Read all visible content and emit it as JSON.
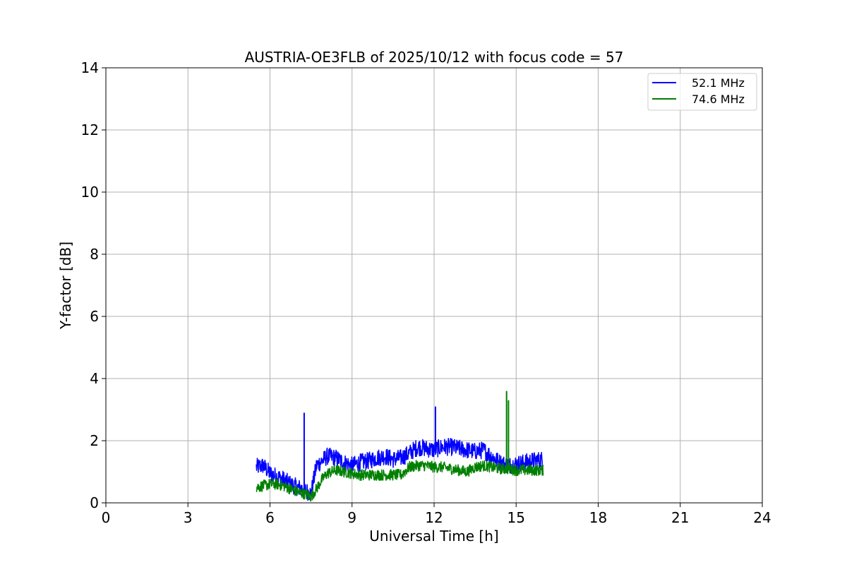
{
  "chart_data": {
    "type": "line",
    "title": "AUSTRIA-OE3FLB of 2025/10/12 with focus code = 57",
    "xlabel": "Universal Time [h]",
    "ylabel": "Y-factor [dB]",
    "xlim": [
      0,
      24
    ],
    "ylim": [
      0,
      14
    ],
    "xticks": [
      0,
      3,
      6,
      9,
      12,
      15,
      18,
      21,
      24
    ],
    "yticks": [
      0,
      2,
      4,
      6,
      8,
      10,
      12,
      14
    ],
    "grid": true,
    "legend_position": "top-right",
    "series": [
      {
        "name": "52.1 MHz",
        "color": "#0000ff",
        "x": [
          5.5,
          5.75,
          6.0,
          6.25,
          6.5,
          6.75,
          7.0,
          7.2,
          7.3,
          7.5,
          7.7,
          7.9,
          8.1,
          8.4,
          8.7,
          9.0,
          9.3,
          9.6,
          9.9,
          10.2,
          10.5,
          10.8,
          11.1,
          11.4,
          11.7,
          12.0,
          12.3,
          12.6,
          12.9,
          13.2,
          13.5,
          13.8,
          14.1,
          14.4,
          14.7,
          15.0,
          15.3,
          15.6,
          16.0
        ],
        "y": [
          1.15,
          1.2,
          0.95,
          0.85,
          0.75,
          0.6,
          0.5,
          0.45,
          0.4,
          0.3,
          1.2,
          1.35,
          1.5,
          1.45,
          1.3,
          1.2,
          1.3,
          1.35,
          1.45,
          1.5,
          1.4,
          1.45,
          1.6,
          1.8,
          1.75,
          1.7,
          1.8,
          1.8,
          1.75,
          1.7,
          1.65,
          1.7,
          1.5,
          1.3,
          1.2,
          1.25,
          1.3,
          1.35,
          1.4
        ]
      },
      {
        "name": "74.6 MHz",
        "color": "#008000",
        "x": [
          5.5,
          5.75,
          6.0,
          6.25,
          6.5,
          6.75,
          7.0,
          7.25,
          7.5,
          7.7,
          7.9,
          8.1,
          8.4,
          8.7,
          9.0,
          9.3,
          9.6,
          9.9,
          10.2,
          10.5,
          10.8,
          11.1,
          11.4,
          11.7,
          12.0,
          12.3,
          12.6,
          12.9,
          13.2,
          13.5,
          13.8,
          14.1,
          14.4,
          14.7,
          15.0,
          15.3,
          15.6,
          16.0
        ],
        "y": [
          0.5,
          0.55,
          0.6,
          0.6,
          0.55,
          0.45,
          0.35,
          0.3,
          0.2,
          0.45,
          0.75,
          0.95,
          1.05,
          1.0,
          0.95,
          0.9,
          0.9,
          0.9,
          0.9,
          0.9,
          0.9,
          1.15,
          1.2,
          1.2,
          1.15,
          1.15,
          1.1,
          1.05,
          1.0,
          1.15,
          1.2,
          1.15,
          1.1,
          1.1,
          1.05,
          1.05,
          1.05,
          1.05
        ]
      }
    ],
    "spikes": [
      {
        "series": "52.1 MHz",
        "x": 7.25,
        "y": 2.9
      },
      {
        "series": "52.1 MHz",
        "x": 12.05,
        "y": 3.1
      },
      {
        "series": "74.6 MHz",
        "x": 14.65,
        "y": 3.6
      },
      {
        "series": "74.6 MHz",
        "x": 14.72,
        "y": 3.3
      }
    ]
  }
}
